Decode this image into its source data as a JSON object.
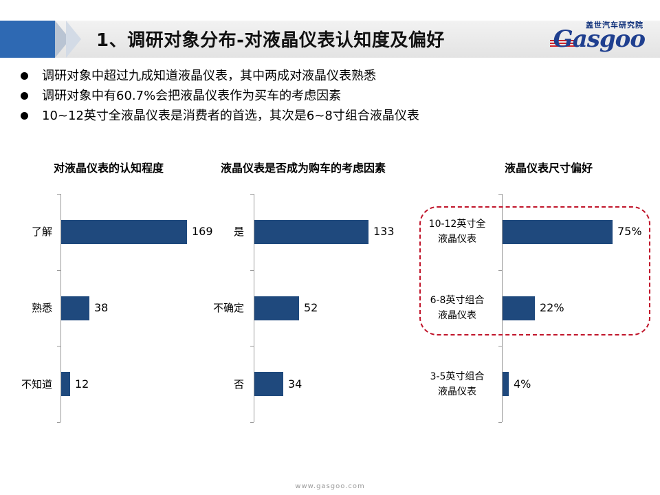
{
  "header": {
    "title": "1、调研对象分布-对液晶仪表认知度及偏好",
    "logo_cn": "盖世汽车研究院",
    "logo_text": "Gasgoo"
  },
  "bullets": [
    "调研对象中超过九成知道液晶仪表，其中两成对液晶仪表熟悉",
    "调研对象中有60.7%会把液晶仪表作为买车的考虑因素",
    "10~12英寸全液晶仪表是消费者的首选，其次是6~8寸组合液晶仪表"
  ],
  "footer": {
    "url": "www.gasgoo.com"
  },
  "colors": {
    "bar": "#1f497d",
    "accent": "#2e69b3",
    "highlight": "#c0142a"
  },
  "chart_data": [
    {
      "type": "bar",
      "orientation": "horizontal",
      "title": "对液晶仪表的认知程度",
      "categories": [
        "了解",
        "熟悉",
        "不知道"
      ],
      "values": [
        169,
        38,
        12
      ],
      "value_labels": [
        "169",
        "38",
        "12"
      ]
    },
    {
      "type": "bar",
      "orientation": "horizontal",
      "title": "液晶仪表是否成为购车的考虑因素",
      "categories": [
        "是",
        "不确定",
        "否"
      ],
      "values": [
        133,
        52,
        34
      ],
      "value_labels": [
        "133",
        "52",
        "34"
      ]
    },
    {
      "type": "bar",
      "orientation": "horizontal",
      "title": "液晶仪表尺寸偏好",
      "categories": [
        [
          "10-12英寸全",
          "液晶仪表"
        ],
        [
          "6-8英寸组合",
          "液晶仪表"
        ],
        [
          "3-5英寸组合",
          "液晶仪表"
        ]
      ],
      "values": [
        75,
        22,
        4
      ],
      "value_labels": [
        "75%",
        "22%",
        "4%"
      ]
    }
  ]
}
